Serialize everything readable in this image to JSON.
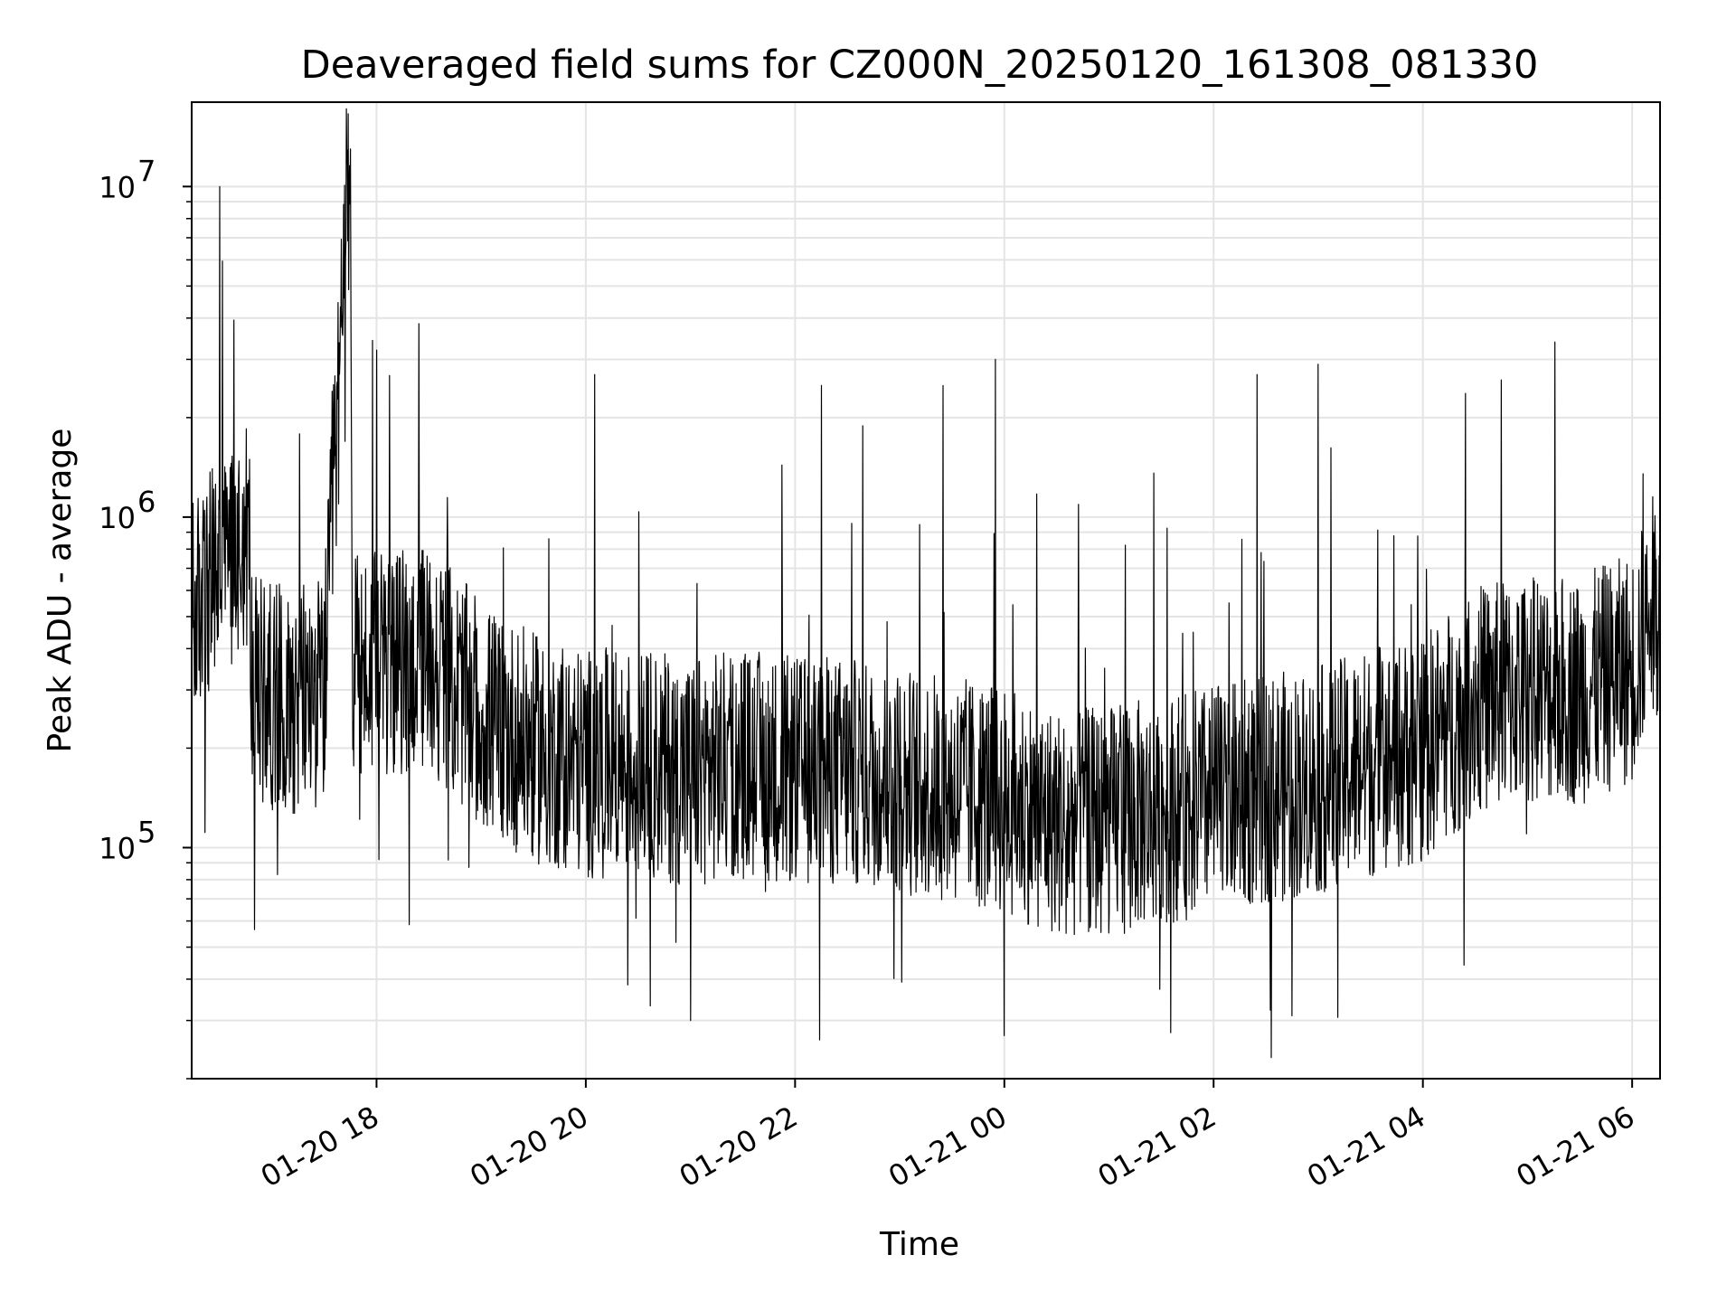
{
  "chart_data": {
    "type": "line",
    "title": "Deaveraged field sums for CZ000N_20250120_161308_081330",
    "xlabel": "Time",
    "ylabel": "Peak ADU - average",
    "x_scale": "time",
    "y_scale": "log",
    "xlim": [
      "2025-01-20 16:14",
      "2025-01-21 06:16"
    ],
    "ylim": [
      20000,
      18000000
    ],
    "x_ticks": [
      "01-20 18",
      "01-20 20",
      "01-20 22",
      "01-21 00",
      "01-21 02",
      "01-21 04",
      "01-21 06"
    ],
    "y_ticks": [
      {
        "value": 100000,
        "base": "10",
        "exp": "5"
      },
      {
        "value": 1000000,
        "base": "10",
        "exp": "6"
      },
      {
        "value": 10000000,
        "base": "10",
        "exp": "7"
      }
    ],
    "grid": true,
    "line_color": "#000000",
    "series": [
      {
        "x": [
          "2025-01-20 16:14",
          "2025-01-20 16:30",
          "2025-01-20 16:40",
          "2025-01-20 16:47",
          "2025-01-20 16:48",
          "2025-01-20 16:50",
          "2025-01-20 17:10",
          "2025-01-20 17:30",
          "2025-01-20 17:45",
          "2025-01-20 17:46",
          "2025-01-20 18:00",
          "2025-01-20 18:30",
          "2025-01-20 19:00",
          "2025-01-20 19:30",
          "2025-01-20 20:00",
          "2025-01-20 20:30",
          "2025-01-20 21:00",
          "2025-01-20 21:30",
          "2025-01-20 22:00",
          "2025-01-20 22:30",
          "2025-01-20 23:00",
          "2025-01-20 23:30",
          "2025-01-21 00:00",
          "2025-01-21 00:30",
          "2025-01-21 01:00",
          "2025-01-21 01:30",
          "2025-01-21 02:00",
          "2025-01-21 02:30",
          "2025-01-21 03:00",
          "2025-01-21 03:30",
          "2025-01-21 04:00",
          "2025-01-21 04:30",
          "2025-01-21 05:00",
          "2025-01-21 05:30",
          "2025-01-21 06:00",
          "2025-01-21 06:16"
        ],
        "y": [
          500000,
          700000,
          850000,
          900000,
          350000,
          300000,
          280000,
          300000,
          13000000,
          350000,
          350000,
          380000,
          250000,
          200000,
          180000,
          180000,
          170000,
          180000,
          170000,
          170000,
          160000,
          150000,
          140000,
          120000,
          120000,
          130000,
          140000,
          150000,
          160000,
          180000,
          200000,
          280000,
          300000,
          300000,
          350000,
          600000
        ]
      }
    ],
    "annotations": {
      "spikes": [
        {
          "x": "2025-01-20 16:30",
          "y": 10000000
        },
        {
          "x": "2025-01-20 17:45",
          "y": 13000000
        },
        {
          "x": "2025-01-20 18:00",
          "y": 3200000
        },
        {
          "x": "2025-01-20 20:05",
          "y": 2700000
        },
        {
          "x": "2025-01-20 22:15",
          "y": 2500000
        },
        {
          "x": "2025-01-20 23:25",
          "y": 2500000
        },
        {
          "x": "2025-01-20 23:55",
          "y": 3000000
        },
        {
          "x": "2025-01-21 02:25",
          "y": 2700000
        },
        {
          "x": "2025-01-21 03:00",
          "y": 2900000
        },
        {
          "x": "2025-01-21 04:45",
          "y": 2600000
        }
      ],
      "dips": [
        {
          "x": "2025-01-20 21:00",
          "y": 30000
        },
        {
          "x": "2025-01-21 00:00",
          "y": 27000
        },
        {
          "x": "2025-01-21 02:45",
          "y": 31000
        }
      ]
    }
  }
}
